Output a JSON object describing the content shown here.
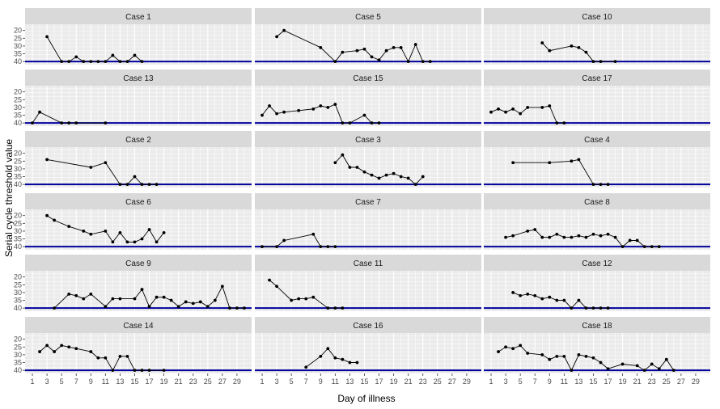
{
  "chart_data": {
    "type": "line",
    "xlabel": "Day of illness",
    "ylabel": "Serial cycle threshold value",
    "xlim": [
      0,
      31
    ],
    "ylim": [
      42,
      16
    ],
    "y_reversed": true,
    "x_ticks": [
      1,
      3,
      5,
      7,
      9,
      11,
      13,
      15,
      17,
      19,
      21,
      23,
      25,
      27,
      29
    ],
    "y_ticks": [
      20,
      25,
      30,
      35,
      40
    ],
    "reference_line": 40,
    "grid": true,
    "colors": {
      "line": "#000000",
      "point": "#000000",
      "reference": "#00009c",
      "panel_bg": "#ebebeb",
      "strip_bg": "#d9d9d9",
      "grid": "#ffffff"
    },
    "facets": [
      {
        "label": "Case 1",
        "points": [
          [
            3,
            24
          ],
          [
            5,
            40
          ],
          [
            6,
            40
          ],
          [
            7,
            37
          ],
          [
            8,
            40
          ],
          [
            9,
            40
          ],
          [
            10,
            40
          ],
          [
            11,
            40
          ],
          [
            12,
            36
          ],
          [
            13,
            40
          ],
          [
            14,
            40
          ],
          [
            15,
            36
          ],
          [
            16,
            40
          ]
        ]
      },
      {
        "label": "Case 5",
        "points": [
          [
            3,
            24
          ],
          [
            4,
            20
          ],
          [
            9,
            31
          ],
          [
            11,
            40
          ],
          [
            12,
            34
          ],
          [
            14,
            33
          ],
          [
            15,
            32
          ],
          [
            16,
            37
          ],
          [
            17,
            39
          ],
          [
            18,
            33
          ],
          [
            19,
            31
          ],
          [
            20,
            31
          ],
          [
            21,
            40
          ],
          [
            22,
            29
          ],
          [
            23,
            40
          ],
          [
            24,
            40
          ]
        ]
      },
      {
        "label": "Case 10",
        "points": [
          [
            8,
            28
          ],
          [
            9,
            33
          ],
          [
            12,
            30
          ],
          [
            13,
            31
          ],
          [
            14,
            34
          ],
          [
            15,
            40
          ],
          [
            16,
            40
          ],
          [
            18,
            40
          ]
        ]
      },
      {
        "label": "Case 13",
        "points": [
          [
            1,
            40
          ],
          [
            2,
            33
          ],
          [
            5,
            40
          ],
          [
            6,
            40
          ],
          [
            7,
            40
          ],
          [
            11,
            40
          ]
        ]
      },
      {
        "label": "Case 15",
        "points": [
          [
            1,
            35
          ],
          [
            2,
            29
          ],
          [
            3,
            34
          ],
          [
            4,
            33
          ],
          [
            6,
            32
          ],
          [
            8,
            31
          ],
          [
            9,
            29
          ],
          [
            10,
            30
          ],
          [
            11,
            28
          ],
          [
            12,
            40
          ],
          [
            13,
            40
          ],
          [
            15,
            35
          ],
          [
            16,
            40
          ],
          [
            17,
            40
          ]
        ]
      },
      {
        "label": "Case 17",
        "points": [
          [
            1,
            33
          ],
          [
            2,
            31
          ],
          [
            3,
            33
          ],
          [
            4,
            31
          ],
          [
            5,
            34
          ],
          [
            6,
            30
          ],
          [
            8,
            30
          ],
          [
            9,
            29
          ],
          [
            10,
            40
          ],
          [
            11,
            40
          ]
        ]
      },
      {
        "label": "Case 2",
        "points": [
          [
            3,
            24
          ],
          [
            9,
            29
          ],
          [
            11,
            26
          ],
          [
            13,
            40
          ],
          [
            14,
            40
          ],
          [
            15,
            35
          ],
          [
            16,
            40
          ],
          [
            17,
            40
          ],
          [
            18,
            40
          ]
        ]
      },
      {
        "label": "Case 3",
        "points": [
          [
            11,
            26
          ],
          [
            12,
            21
          ],
          [
            13,
            29
          ],
          [
            14,
            29
          ],
          [
            15,
            32
          ],
          [
            16,
            34
          ],
          [
            17,
            36
          ],
          [
            18,
            34
          ],
          [
            19,
            33
          ],
          [
            20,
            35
          ],
          [
            21,
            36
          ],
          [
            22,
            40
          ],
          [
            23,
            35
          ]
        ]
      },
      {
        "label": "Case 4",
        "points": [
          [
            4,
            26
          ],
          [
            9,
            26
          ],
          [
            12,
            25
          ],
          [
            13,
            24
          ],
          [
            15,
            40
          ],
          [
            16,
            40
          ],
          [
            17,
            40
          ]
        ]
      },
      {
        "label": "Case 6",
        "points": [
          [
            3,
            20
          ],
          [
            4,
            23
          ],
          [
            6,
            27
          ],
          [
            8,
            30
          ],
          [
            9,
            32
          ],
          [
            11,
            30
          ],
          [
            12,
            37
          ],
          [
            13,
            31
          ],
          [
            14,
            37
          ],
          [
            15,
            37
          ],
          [
            16,
            35
          ],
          [
            17,
            29
          ],
          [
            18,
            37
          ],
          [
            19,
            31
          ]
        ]
      },
      {
        "label": "Case 7",
        "points": [
          [
            1,
            40
          ],
          [
            3,
            40
          ],
          [
            4,
            36
          ],
          [
            8,
            32
          ],
          [
            9,
            40
          ],
          [
            10,
            40
          ],
          [
            11,
            40
          ]
        ]
      },
      {
        "label": "Case 8",
        "points": [
          [
            3,
            34
          ],
          [
            4,
            33
          ],
          [
            6,
            30
          ],
          [
            7,
            29
          ],
          [
            8,
            34
          ],
          [
            9,
            34
          ],
          [
            10,
            32
          ],
          [
            11,
            34
          ],
          [
            12,
            34
          ],
          [
            13,
            33
          ],
          [
            14,
            34
          ],
          [
            15,
            32
          ],
          [
            16,
            33
          ],
          [
            17,
            32
          ],
          [
            18,
            34
          ],
          [
            19,
            40
          ],
          [
            20,
            36
          ],
          [
            21,
            36
          ],
          [
            22,
            40
          ],
          [
            23,
            40
          ],
          [
            24,
            40
          ]
        ]
      },
      {
        "label": "Case 9",
        "points": [
          [
            4,
            40
          ],
          [
            6,
            31
          ],
          [
            7,
            32
          ],
          [
            8,
            34
          ],
          [
            9,
            31
          ],
          [
            11,
            39
          ],
          [
            12,
            34
          ],
          [
            13,
            34
          ],
          [
            15,
            34
          ],
          [
            16,
            28
          ],
          [
            17,
            39
          ],
          [
            18,
            33
          ],
          [
            19,
            33
          ],
          [
            20,
            35
          ],
          [
            21,
            39
          ],
          [
            22,
            36
          ],
          [
            23,
            37
          ],
          [
            24,
            36
          ],
          [
            25,
            39
          ],
          [
            26,
            35
          ],
          [
            27,
            26
          ],
          [
            28,
            40
          ],
          [
            29,
            40
          ],
          [
            30,
            40
          ]
        ]
      },
      {
        "label": "Case 11",
        "points": [
          [
            2,
            22
          ],
          [
            3,
            26
          ],
          [
            5,
            35
          ],
          [
            6,
            34
          ],
          [
            7,
            34
          ],
          [
            8,
            33
          ],
          [
            10,
            40
          ],
          [
            11,
            40
          ],
          [
            12,
            40
          ]
        ]
      },
      {
        "label": "Case 12",
        "points": [
          [
            4,
            30
          ],
          [
            5,
            32
          ],
          [
            6,
            31
          ],
          [
            7,
            32
          ],
          [
            8,
            34
          ],
          [
            9,
            33
          ],
          [
            10,
            35
          ],
          [
            11,
            35
          ],
          [
            12,
            40
          ],
          [
            13,
            35
          ],
          [
            14,
            40
          ],
          [
            15,
            40
          ],
          [
            16,
            40
          ],
          [
            17,
            40
          ]
        ]
      },
      {
        "label": "Case 14",
        "points": [
          [
            2,
            28
          ],
          [
            3,
            24
          ],
          [
            4,
            28
          ],
          [
            5,
            24
          ],
          [
            6,
            25
          ],
          [
            7,
            26
          ],
          [
            9,
            28
          ],
          [
            10,
            32
          ],
          [
            11,
            32
          ],
          [
            12,
            40
          ],
          [
            13,
            31
          ],
          [
            14,
            31
          ],
          [
            15,
            40
          ],
          [
            16,
            40
          ],
          [
            17,
            40
          ],
          [
            19,
            40
          ]
        ]
      },
      {
        "label": "Case 16",
        "points": [
          [
            7,
            38
          ],
          [
            9,
            31
          ],
          [
            10,
            26
          ],
          [
            11,
            32
          ],
          [
            12,
            33
          ],
          [
            13,
            35
          ],
          [
            14,
            35
          ]
        ]
      },
      {
        "label": "Case 18",
        "points": [
          [
            2,
            28
          ],
          [
            3,
            25
          ],
          [
            4,
            26
          ],
          [
            5,
            24
          ],
          [
            6,
            29
          ],
          [
            8,
            30
          ],
          [
            9,
            33
          ],
          [
            10,
            31
          ],
          [
            11,
            31
          ],
          [
            12,
            40
          ],
          [
            13,
            30
          ],
          [
            14,
            31
          ],
          [
            15,
            32
          ],
          [
            16,
            35
          ],
          [
            17,
            39
          ],
          [
            19,
            36
          ],
          [
            21,
            37
          ],
          [
            22,
            40
          ],
          [
            23,
            36
          ],
          [
            24,
            39
          ],
          [
            25,
            33
          ],
          [
            26,
            40
          ]
        ]
      }
    ]
  }
}
